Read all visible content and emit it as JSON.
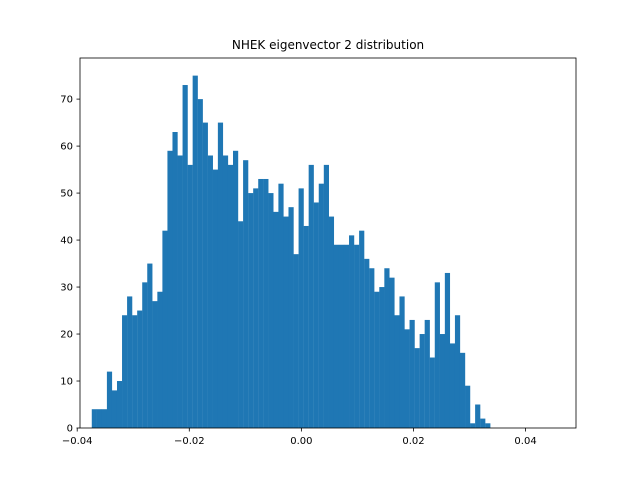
{
  "chart_data": {
    "type": "bar",
    "title": "NHEK eigenvector 2 distribution",
    "xlabel": "",
    "ylabel": "",
    "xlim": [
      -0.0395,
      0.049
    ],
    "ylim": [
      0,
      78.75
    ],
    "bin_start": -0.0374,
    "bin_width": 0.0009,
    "values": [
      4,
      4,
      4,
      12,
      8,
      10,
      24,
      28,
      24,
      25,
      31,
      35,
      27,
      29,
      42,
      59,
      63,
      58,
      73,
      56,
      75,
      70,
      65,
      58,
      55,
      65,
      58,
      56,
      59,
      44,
      57,
      50,
      51,
      53,
      53,
      50,
      46,
      52,
      45,
      47,
      37,
      51,
      43,
      56,
      48,
      52,
      56,
      45,
      39,
      39,
      39,
      41,
      39,
      42,
      36,
      34,
      29,
      30,
      34,
      32,
      24,
      28,
      21,
      23,
      17,
      20,
      23,
      15,
      31,
      20,
      33,
      18,
      24,
      16,
      9,
      1,
      5,
      2,
      1
    ],
    "x_ticks": [
      -0.04,
      -0.02,
      0.0,
      0.02,
      0.04
    ],
    "x_tick_labels": [
      "−0.04",
      "−0.02",
      "0.00",
      "0.02",
      "0.04"
    ],
    "y_ticks": [
      0,
      10,
      20,
      30,
      40,
      50,
      60,
      70
    ],
    "y_tick_labels": [
      "0",
      "10",
      "20",
      "30",
      "40",
      "50",
      "60",
      "70"
    ],
    "bar_color": "#1f77b4",
    "grid": false,
    "legend": "none"
  }
}
